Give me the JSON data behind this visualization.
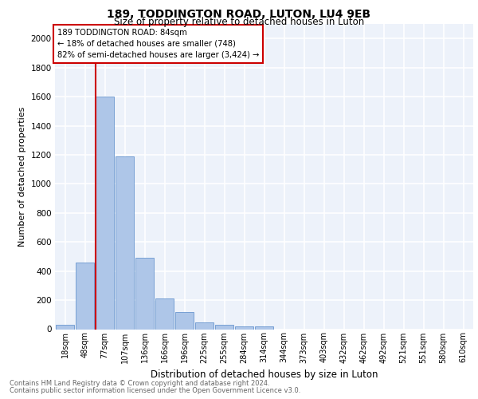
{
  "title1": "189, TODDINGTON ROAD, LUTON, LU4 9EB",
  "title2": "Size of property relative to detached houses in Luton",
  "xlabel": "Distribution of detached houses by size in Luton",
  "ylabel": "Number of detached properties",
  "categories": [
    "18sqm",
    "48sqm",
    "77sqm",
    "107sqm",
    "136sqm",
    "166sqm",
    "196sqm",
    "225sqm",
    "255sqm",
    "284sqm",
    "314sqm",
    "344sqm",
    "373sqm",
    "403sqm",
    "432sqm",
    "462sqm",
    "492sqm",
    "521sqm",
    "551sqm",
    "580sqm",
    "610sqm"
  ],
  "values": [
    30,
    460,
    1600,
    1190,
    490,
    210,
    120,
    45,
    30,
    18,
    18,
    0,
    0,
    0,
    0,
    0,
    0,
    0,
    0,
    0,
    0
  ],
  "bar_color": "#aec6e8",
  "bar_edge_color": "#5589c8",
  "annotation_lines": [
    "189 TODDINGTON ROAD: 84sqm",
    "← 18% of detached houses are smaller (748)",
    "82% of semi-detached houses are larger (3,424) →"
  ],
  "vline_color": "#cc0000",
  "annotation_box_edge": "#cc0000",
  "ylim": [
    0,
    2100
  ],
  "yticks": [
    0,
    200,
    400,
    600,
    800,
    1000,
    1200,
    1400,
    1600,
    1800,
    2000
  ],
  "footnote1": "Contains HM Land Registry data © Crown copyright and database right 2024.",
  "footnote2": "Contains public sector information licensed under the Open Government Licence v3.0.",
  "bg_color": "#edf2fa",
  "grid_color": "#ffffff"
}
